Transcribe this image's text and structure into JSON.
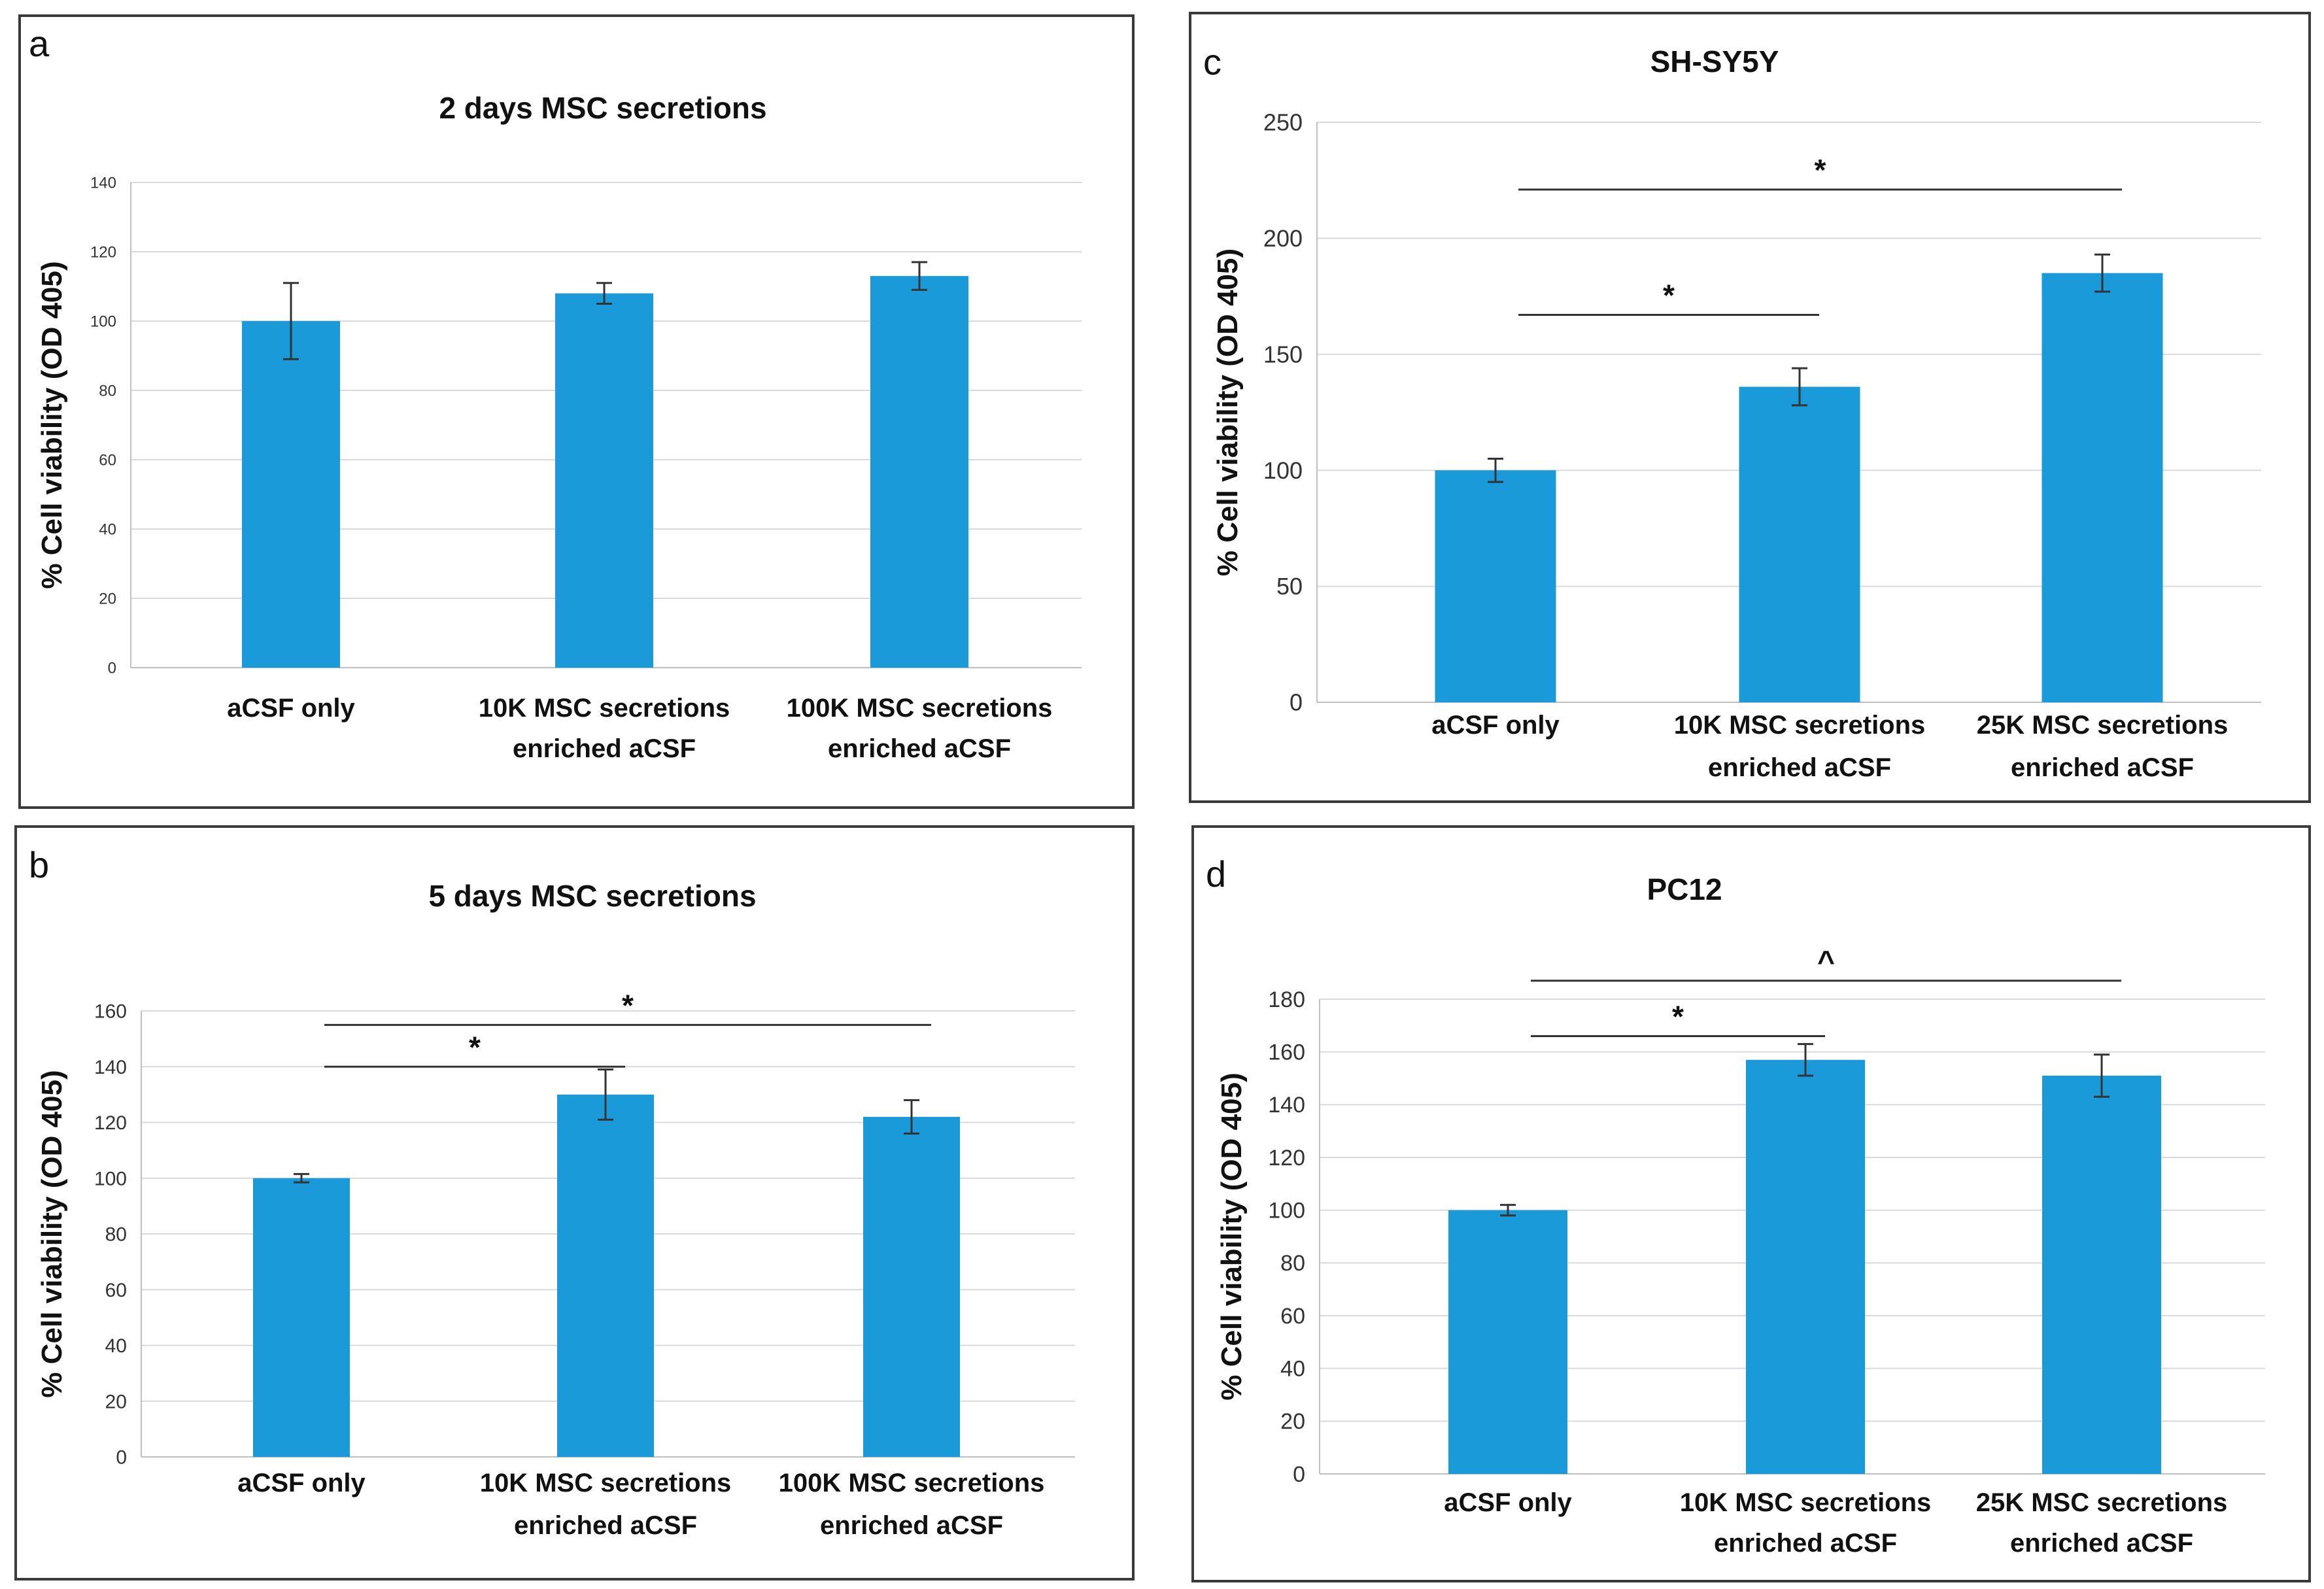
{
  "chart_data": [
    {
      "panel": "a",
      "type": "bar",
      "title": "2 days MSC secretions",
      "ylabel": "% Cell viability (OD 405)",
      "ylim": [
        0,
        140
      ],
      "yticks": [
        0,
        20,
        40,
        60,
        80,
        100,
        120,
        140
      ],
      "categories": [
        [
          "aCSF only"
        ],
        [
          "10K MSC secretions",
          "enriched aCSF"
        ],
        [
          "100K MSC secretions",
          "enriched aCSF"
        ]
      ],
      "values": [
        100,
        108,
        113
      ],
      "errors": [
        11,
        3,
        4
      ],
      "significance": []
    },
    {
      "panel": "b",
      "type": "bar",
      "title": "5 days MSC secretions",
      "ylabel": "% Cell viability (OD 405)",
      "ylim": [
        0,
        160
      ],
      "yticks": [
        0,
        20,
        40,
        60,
        80,
        100,
        120,
        140,
        160
      ],
      "categories": [
        [
          "aCSF only"
        ],
        [
          "10K MSC secretions",
          "enriched aCSF"
        ],
        [
          "100K MSC secretions",
          "enriched aCSF"
        ]
      ],
      "values": [
        100,
        130,
        122
      ],
      "errors": [
        1.5,
        9,
        6
      ],
      "significance": [
        {
          "from": 0,
          "to": 1,
          "level": 140,
          "label": "*"
        },
        {
          "from": 0,
          "to": 2,
          "level": 155,
          "label": "*"
        }
      ]
    },
    {
      "panel": "c",
      "type": "bar",
      "title": "SH-SY5Y",
      "ylabel": "% Cell viability (OD 405)",
      "ylim": [
        0,
        250
      ],
      "yticks": [
        0,
        50,
        100,
        150,
        200,
        250
      ],
      "categories": [
        [
          "aCSF only"
        ],
        [
          "10K MSC secretions",
          "enriched aCSF"
        ],
        [
          "25K MSC secretions",
          "enriched aCSF"
        ]
      ],
      "values": [
        100,
        136,
        185
      ],
      "errors": [
        5,
        8,
        8
      ],
      "significance": [
        {
          "from": 0,
          "to": 1,
          "level": 167,
          "label": "*"
        },
        {
          "from": 0,
          "to": 2,
          "level": 221,
          "label": "*"
        }
      ]
    },
    {
      "panel": "d",
      "type": "bar",
      "title": "PC12",
      "ylabel": "% Cell viability (OD 405)",
      "ylim": [
        0,
        180
      ],
      "yticks": [
        0,
        20,
        40,
        60,
        80,
        100,
        120,
        140,
        160,
        180
      ],
      "categories": [
        [
          "aCSF only"
        ],
        [
          "10K MSC secretions",
          "enriched aCSF"
        ],
        [
          "25K MSC secretions",
          "enriched aCSF"
        ]
      ],
      "values": [
        100,
        157,
        151
      ],
      "errors": [
        2,
        6,
        8
      ],
      "significance": [
        {
          "from": 0,
          "to": 1,
          "level": 166,
          "label": "*"
        },
        {
          "from": 0,
          "to": 2,
          "level": 187,
          "label": "^"
        }
      ]
    }
  ],
  "colors": {
    "bar": "#1a9ad8"
  }
}
